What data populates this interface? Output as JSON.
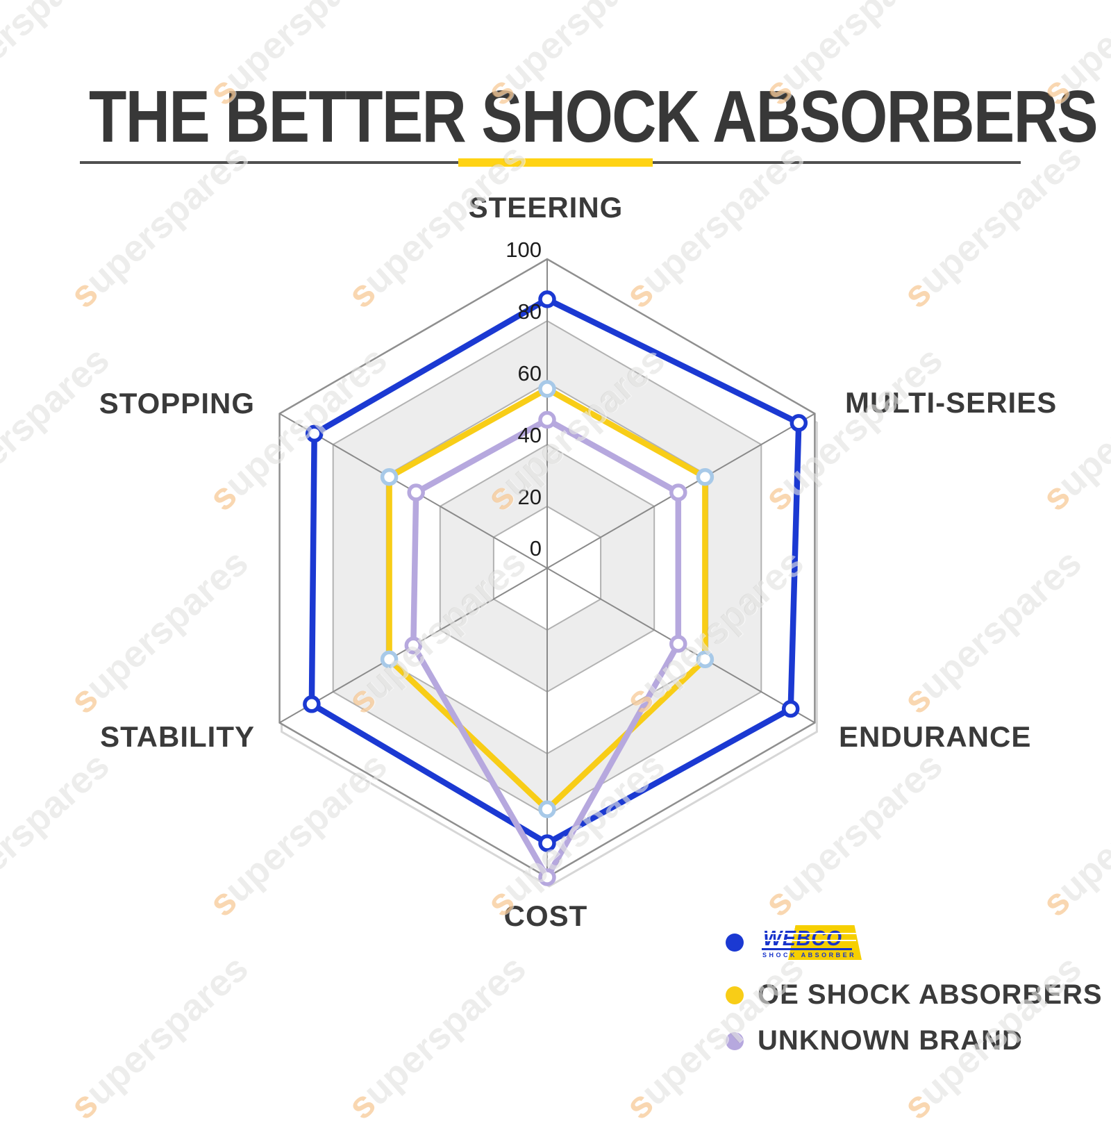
{
  "page": {
    "title": "THE BETTER SHOCK ABSORBERS",
    "watermark_text": "superspares",
    "accent_yellow": "#ffd314",
    "divider_color": "#4f4f4f"
  },
  "chart_data": {
    "type": "radar",
    "categories": [
      "STEERING",
      "MULTI-SERIES",
      "ENDURANCE",
      "COST",
      "STABILITY",
      "STOPPING"
    ],
    "axis_range": [
      0,
      100
    ],
    "tick_values": [
      100,
      80,
      60,
      40,
      20,
      0
    ],
    "series": [
      {
        "name": "WEBCO",
        "color": "#1b39d2",
        "marker_stroke": "#1b39d2",
        "values": [
          87,
          94,
          91,
          89,
          88,
          87
        ]
      },
      {
        "name": "OE SHOCK ABSORBERS",
        "color": "#f8cd17",
        "marker_stroke": "#a7c9e8",
        "values": [
          58,
          59,
          59,
          78,
          59,
          59
        ]
      },
      {
        "name": "UNKNOWN BRAND",
        "color": "#b6a8de",
        "marker_stroke": "#b6a8de",
        "values": [
          48,
          49,
          49,
          100,
          50,
          49
        ]
      }
    ],
    "grid": {
      "band_fill": "#ededed",
      "ring_stroke": "#b2b2b2",
      "outer_stroke": "#8f8f8f",
      "spoke_stroke": "#8a8a8a",
      "shadow_stroke": "#d6d6d6",
      "tick_color": "#1c1c1c",
      "axis_label_color": "#3a3a3a"
    }
  },
  "legend": {
    "items": [
      {
        "label": "WEBCO",
        "sub_label": "SHOCK ABSORBER",
        "dot_color": "#1b39d2",
        "type": "logo"
      },
      {
        "label": "OE SHOCK ABSORBERS",
        "dot_color": "#f8cd17"
      },
      {
        "label": "UNKNOWN BRAND",
        "dot_color": "#b6a8de"
      }
    ]
  }
}
